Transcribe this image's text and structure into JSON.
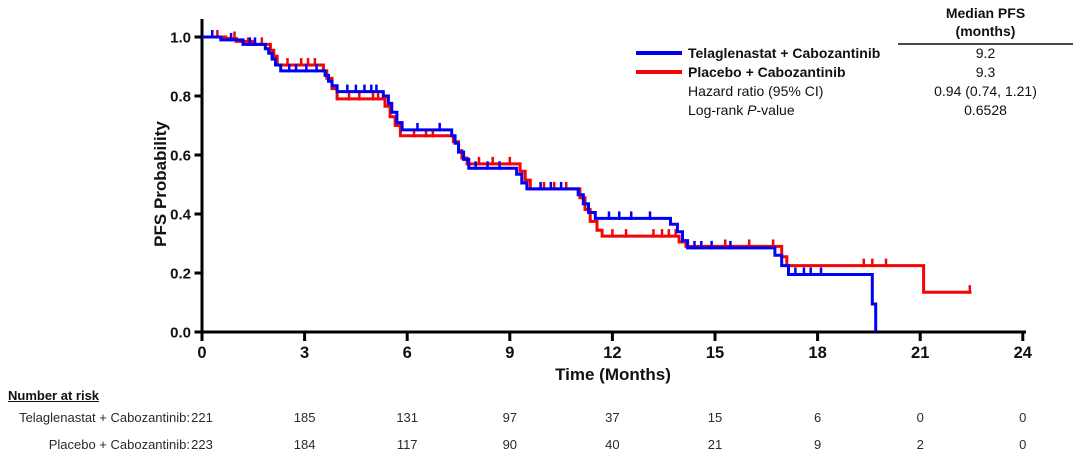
{
  "figure": {
    "stats": {
      "header_line1": "Median PFS",
      "header_line2": "(months)",
      "rows": [
        {
          "label": "Telaglenastat + Cabozantinib",
          "value": "9.2",
          "swatch": "#0000f2"
        },
        {
          "label": "Placebo + Cabozantinib",
          "value": "9.3",
          "swatch": "#f40505"
        }
      ],
      "hazard_label": "Hazard ratio (95% CI)",
      "hazard_value": "0.94 (0.74, 1.21)",
      "logrank_prefix": "Log-rank ",
      "logrank_italic": "P",
      "logrank_suffix": "-value",
      "logrank_value": "0.6528"
    },
    "risk_table": {
      "title": "Number at risk",
      "rows": [
        {
          "label": "Telaglenastat + Cabozantinib:",
          "counts": [
            "221",
            "185",
            "131",
            "97",
            "37",
            "15",
            "6",
            "0",
            "0"
          ]
        },
        {
          "label": "Placebo + Cabozantinib:",
          "counts": [
            "223",
            "184",
            "117",
            "90",
            "40",
            "21",
            "9",
            "2",
            "0"
          ]
        }
      ]
    }
  },
  "chart_data": {
    "type": "line",
    "subtype": "kaplan-meier-step",
    "title": "",
    "xlabel": "Time (Months)",
    "ylabel": "PFS Probability",
    "xlim": [
      0,
      24
    ],
    "ylim": [
      0.0,
      1.0
    ],
    "x_ticks": [
      0,
      3,
      6,
      9,
      12,
      15,
      18,
      21,
      24
    ],
    "y_ticks": [
      0.0,
      0.2,
      0.4,
      0.6,
      0.8,
      1.0
    ],
    "y_tick_labels": [
      "0.0",
      "0.2",
      "0.4",
      "0.6",
      "0.8",
      "1.0"
    ],
    "grid": false,
    "legend_position": "top-right",
    "annotations": {
      "median_pfs_months": {
        "telaglenastat": 9.2,
        "placebo": 9.3
      },
      "hazard_ratio_95ci": "0.94 (0.74, 1.21)",
      "log_rank_p_value": "0.6528"
    },
    "series": [
      {
        "id": "placebo",
        "name": "Placebo + Cabozantinib",
        "color": "#f40505",
        "median_pfs_months": 9.3,
        "steps": [
          [
            0,
            1.0
          ],
          [
            0.7,
            0.995
          ],
          [
            1.0,
            0.985
          ],
          [
            1.5,
            0.975
          ],
          [
            2.0,
            0.955
          ],
          [
            2.1,
            0.935
          ],
          [
            2.2,
            0.905
          ],
          [
            3.55,
            0.885
          ],
          [
            3.65,
            0.86
          ],
          [
            3.8,
            0.825
          ],
          [
            3.95,
            0.79
          ],
          [
            5.35,
            0.765
          ],
          [
            5.5,
            0.73
          ],
          [
            5.65,
            0.7
          ],
          [
            5.8,
            0.665
          ],
          [
            7.35,
            0.645
          ],
          [
            7.5,
            0.615
          ],
          [
            7.6,
            0.59
          ],
          [
            7.75,
            0.57
          ],
          [
            9.3,
            0.545
          ],
          [
            9.45,
            0.515
          ],
          [
            9.6,
            0.485
          ],
          [
            11.05,
            0.455
          ],
          [
            11.2,
            0.415
          ],
          [
            11.35,
            0.375
          ],
          [
            11.55,
            0.345
          ],
          [
            11.7,
            0.325
          ],
          [
            13.95,
            0.305
          ],
          [
            14.15,
            0.29
          ],
          [
            16.95,
            0.255
          ],
          [
            17.1,
            0.225
          ],
          [
            21.1,
            0.135
          ],
          [
            22.5,
            0.135
          ]
        ],
        "censor_marks": [
          [
            0.45,
            1.0
          ],
          [
            0.95,
            0.995
          ],
          [
            1.35,
            0.975
          ],
          [
            1.75,
            0.975
          ],
          [
            2.5,
            0.905
          ],
          [
            2.9,
            0.905
          ],
          [
            3.1,
            0.905
          ],
          [
            3.3,
            0.905
          ],
          [
            4.3,
            0.79
          ],
          [
            4.6,
            0.79
          ],
          [
            5.0,
            0.79
          ],
          [
            5.15,
            0.79
          ],
          [
            6.2,
            0.665
          ],
          [
            6.55,
            0.665
          ],
          [
            6.75,
            0.665
          ],
          [
            8.1,
            0.57
          ],
          [
            8.5,
            0.57
          ],
          [
            9.0,
            0.57
          ],
          [
            10.0,
            0.485
          ],
          [
            10.3,
            0.485
          ],
          [
            10.65,
            0.485
          ],
          [
            12.0,
            0.325
          ],
          [
            12.4,
            0.325
          ],
          [
            13.2,
            0.325
          ],
          [
            13.45,
            0.325
          ],
          [
            13.65,
            0.325
          ],
          [
            13.85,
            0.325
          ],
          [
            15.3,
            0.29
          ],
          [
            16.0,
            0.29
          ],
          [
            16.7,
            0.29
          ],
          [
            19.35,
            0.225
          ],
          [
            19.6,
            0.225
          ],
          [
            20.0,
            0.225
          ],
          [
            22.45,
            0.135
          ]
        ]
      },
      {
        "id": "telaglenastat",
        "name": "Telaglenastat + Cabozantinib",
        "color": "#0000f2",
        "median_pfs_months": 9.2,
        "steps": [
          [
            0,
            1.0
          ],
          [
            0.55,
            0.99
          ],
          [
            1.2,
            0.975
          ],
          [
            1.85,
            0.96
          ],
          [
            1.95,
            0.945
          ],
          [
            2.05,
            0.925
          ],
          [
            2.15,
            0.905
          ],
          [
            2.3,
            0.885
          ],
          [
            3.6,
            0.87
          ],
          [
            3.7,
            0.85
          ],
          [
            3.8,
            0.835
          ],
          [
            3.95,
            0.815
          ],
          [
            5.3,
            0.8
          ],
          [
            5.45,
            0.775
          ],
          [
            5.55,
            0.745
          ],
          [
            5.7,
            0.71
          ],
          [
            5.85,
            0.685
          ],
          [
            7.3,
            0.665
          ],
          [
            7.4,
            0.64
          ],
          [
            7.5,
            0.61
          ],
          [
            7.65,
            0.585
          ],
          [
            7.8,
            0.555
          ],
          [
            9.2,
            0.535
          ],
          [
            9.35,
            0.505
          ],
          [
            9.5,
            0.485
          ],
          [
            11.0,
            0.465
          ],
          [
            11.15,
            0.435
          ],
          [
            11.3,
            0.405
          ],
          [
            11.5,
            0.385
          ],
          [
            13.7,
            0.365
          ],
          [
            13.9,
            0.34
          ],
          [
            14.05,
            0.31
          ],
          [
            14.2,
            0.285
          ],
          [
            16.75,
            0.26
          ],
          [
            16.95,
            0.225
          ],
          [
            17.15,
            0.195
          ],
          [
            19.6,
            0.095
          ],
          [
            19.7,
            0.0
          ]
        ],
        "censor_marks": [
          [
            0.3,
            1.0
          ],
          [
            0.85,
            0.99
          ],
          [
            1.4,
            0.975
          ],
          [
            1.55,
            0.975
          ],
          [
            2.55,
            0.885
          ],
          [
            2.75,
            0.885
          ],
          [
            3.05,
            0.885
          ],
          [
            3.35,
            0.885
          ],
          [
            4.25,
            0.815
          ],
          [
            4.5,
            0.815
          ],
          [
            4.75,
            0.815
          ],
          [
            4.95,
            0.815
          ],
          [
            5.1,
            0.815
          ],
          [
            6.3,
            0.685
          ],
          [
            6.95,
            0.685
          ],
          [
            8.0,
            0.555
          ],
          [
            8.35,
            0.555
          ],
          [
            8.7,
            0.555
          ],
          [
            9.9,
            0.485
          ],
          [
            10.2,
            0.485
          ],
          [
            10.5,
            0.485
          ],
          [
            11.9,
            0.385
          ],
          [
            12.2,
            0.385
          ],
          [
            12.55,
            0.385
          ],
          [
            13.1,
            0.385
          ],
          [
            14.4,
            0.285
          ],
          [
            14.6,
            0.285
          ],
          [
            14.9,
            0.285
          ],
          [
            15.45,
            0.285
          ],
          [
            17.35,
            0.195
          ],
          [
            17.6,
            0.195
          ],
          [
            17.8,
            0.195
          ],
          [
            18.1,
            0.195
          ]
        ]
      }
    ]
  }
}
